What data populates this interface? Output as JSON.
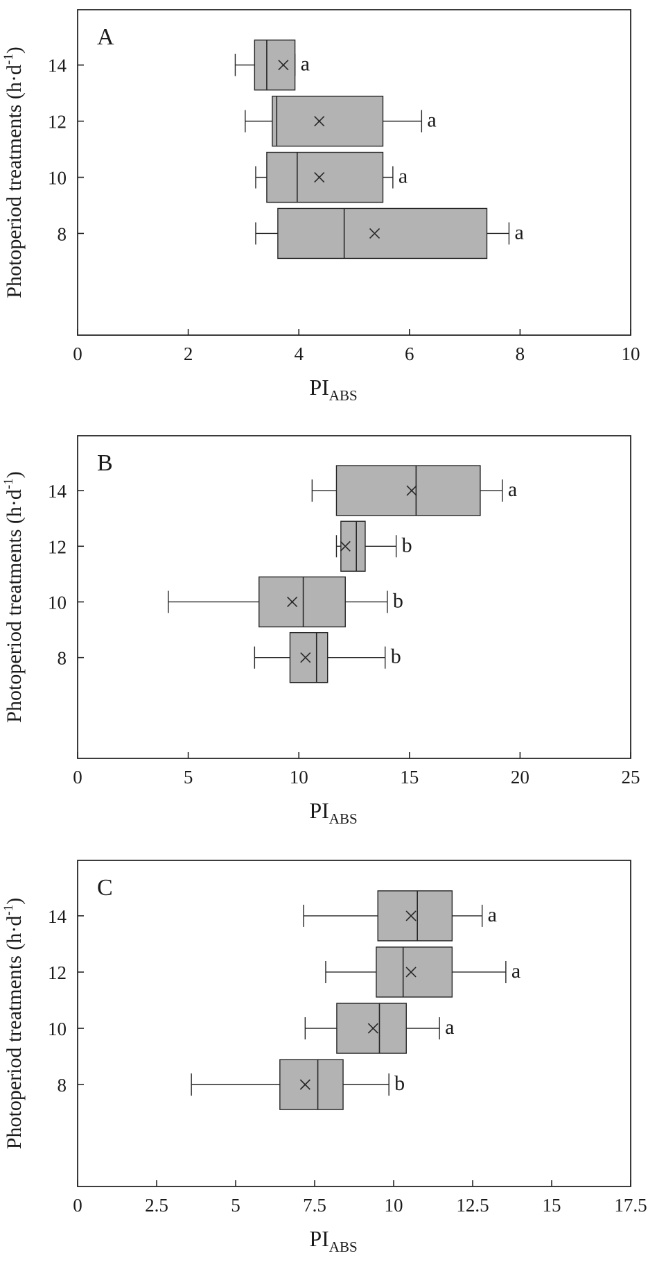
{
  "figure": {
    "ylabel_main": "Photoperiod treatments (h·d",
    "ylabel_sup": "-1",
    "ylabel_close": ")",
    "xlabel_main": "PI",
    "xlabel_sub": "ABS"
  },
  "colors": {
    "box_fill": "#b3b3b3",
    "stroke": "#262626",
    "text": "#1a1a1a"
  },
  "chart_data": [
    {
      "type": "box",
      "panel": "A",
      "xlim": [
        0,
        10
      ],
      "xticks": [
        0,
        2,
        4,
        6,
        8,
        10
      ],
      "xtick_labels": [
        "0",
        "2",
        "4",
        "6",
        "8",
        "10"
      ],
      "categories": [
        "14",
        "12",
        "10",
        "8"
      ],
      "boxes": [
        {
          "group": "14",
          "whisker_low": 2.85,
          "q1": 3.2,
          "median": 3.42,
          "q3": 3.93,
          "whisker_high": 3.93,
          "mean": 3.72,
          "letter": "a"
        },
        {
          "group": "12",
          "whisker_low": 3.03,
          "q1": 3.52,
          "median": 3.6,
          "q3": 5.52,
          "whisker_high": 6.22,
          "mean": 4.37,
          "letter": "a"
        },
        {
          "group": "10",
          "whisker_low": 3.22,
          "q1": 3.42,
          "median": 3.97,
          "q3": 5.52,
          "whisker_high": 5.7,
          "mean": 4.37,
          "letter": "a"
        },
        {
          "group": "8",
          "whisker_low": 3.22,
          "q1": 3.62,
          "median": 4.82,
          "q3": 7.4,
          "whisker_high": 7.8,
          "mean": 5.37,
          "letter": "a"
        }
      ]
    },
    {
      "type": "box",
      "panel": "B",
      "xlim": [
        0,
        25
      ],
      "xticks": [
        0,
        5,
        10,
        15,
        20,
        25
      ],
      "xtick_labels": [
        "0",
        "5",
        "10",
        "15",
        "20",
        "25"
      ],
      "categories": [
        "14",
        "12",
        "10",
        "8"
      ],
      "boxes": [
        {
          "group": "14",
          "whisker_low": 10.6,
          "q1": 11.7,
          "median": 15.3,
          "q3": 18.2,
          "whisker_high": 19.2,
          "mean": 15.1,
          "letter": "a"
        },
        {
          "group": "12",
          "whisker_low": 11.7,
          "q1": 11.9,
          "median": 12.6,
          "q3": 13.0,
          "whisker_high": 14.4,
          "mean": 12.1,
          "letter": "b"
        },
        {
          "group": "10",
          "whisker_low": 4.1,
          "q1": 8.2,
          "median": 10.2,
          "q3": 12.1,
          "whisker_high": 14.0,
          "mean": 9.7,
          "letter": "b"
        },
        {
          "group": "8",
          "whisker_low": 8.0,
          "q1": 9.6,
          "median": 10.8,
          "q3": 11.3,
          "whisker_high": 13.9,
          "mean": 10.3,
          "letter": "b"
        }
      ]
    },
    {
      "type": "box",
      "panel": "C",
      "xlim": [
        0,
        17.5
      ],
      "xticks": [
        0,
        2.5,
        5,
        7.5,
        10,
        12.5,
        15,
        17.5
      ],
      "xtick_labels": [
        "0",
        "2.5",
        "5",
        "7.5",
        "10",
        "12.5",
        "15",
        "17.5"
      ],
      "categories": [
        "14",
        "12",
        "10",
        "8"
      ],
      "boxes": [
        {
          "group": "14",
          "whisker_low": 7.15,
          "q1": 9.5,
          "median": 10.75,
          "q3": 11.85,
          "whisker_high": 12.8,
          "mean": 10.55,
          "letter": "a"
        },
        {
          "group": "12",
          "whisker_low": 7.85,
          "q1": 9.45,
          "median": 10.3,
          "q3": 11.85,
          "whisker_high": 13.55,
          "mean": 10.55,
          "letter": "a"
        },
        {
          "group": "10",
          "whisker_low": 7.2,
          "q1": 8.2,
          "median": 9.55,
          "q3": 10.4,
          "whisker_high": 11.45,
          "mean": 9.35,
          "letter": "a"
        },
        {
          "group": "8",
          "whisker_low": 3.6,
          "q1": 6.4,
          "median": 7.6,
          "q3": 8.4,
          "whisker_high": 9.85,
          "mean": 7.2,
          "letter": "b"
        }
      ]
    }
  ]
}
